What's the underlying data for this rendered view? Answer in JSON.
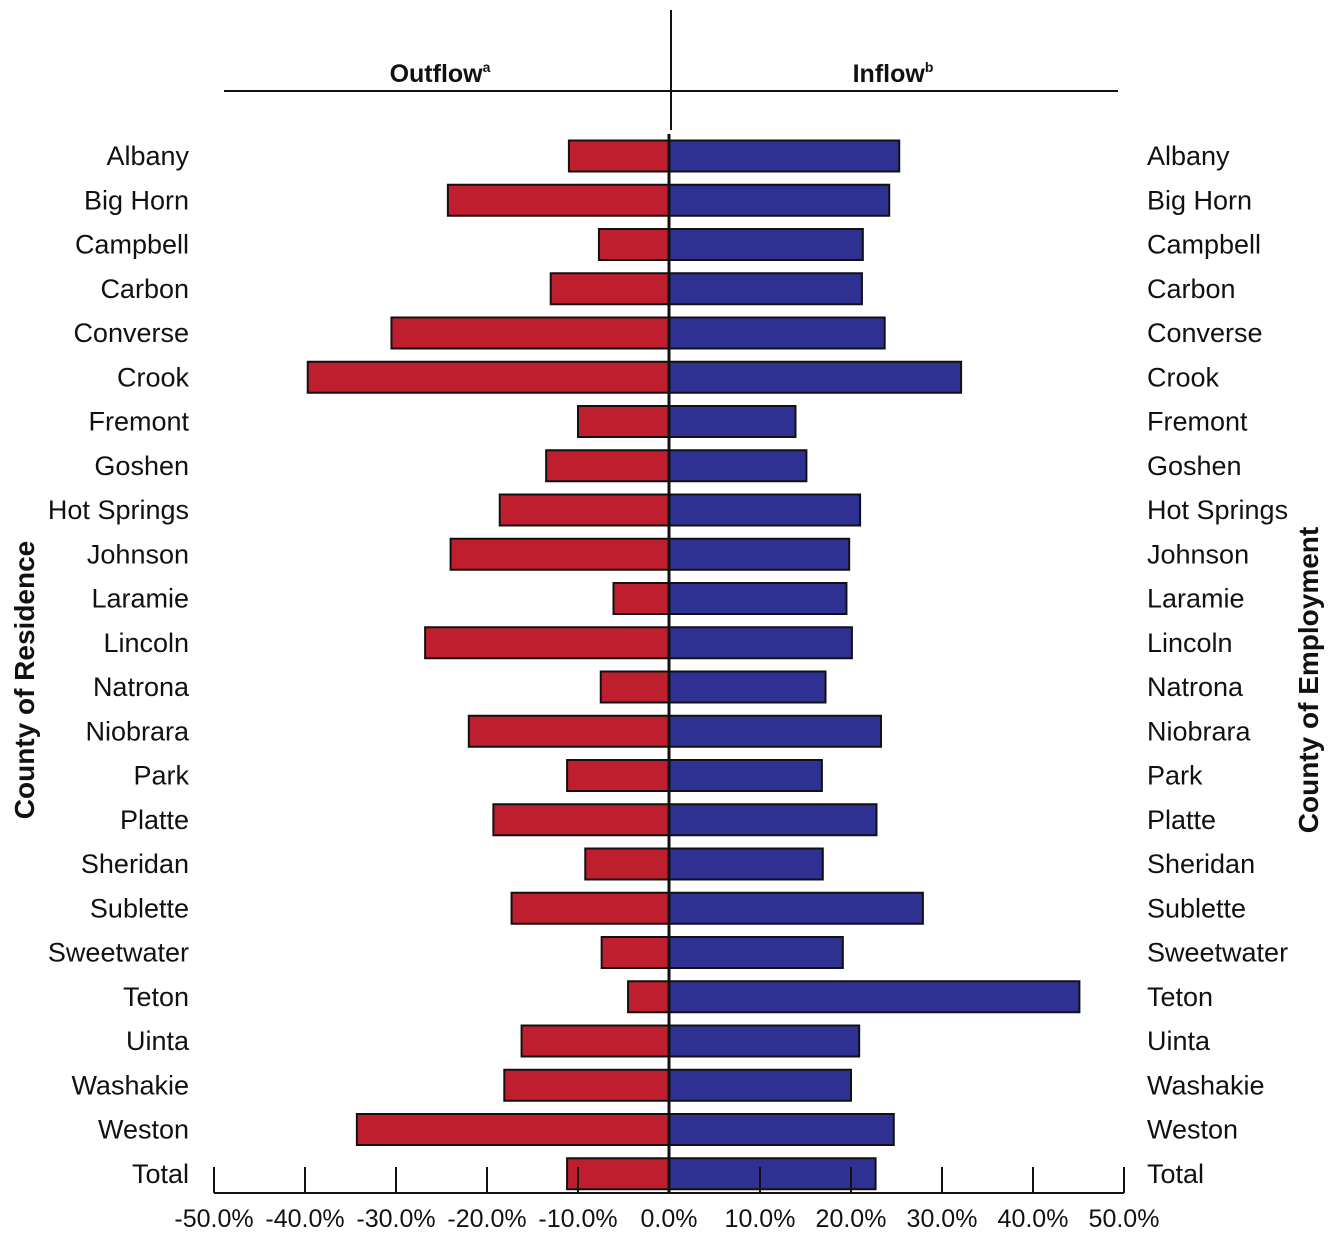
{
  "chart_data": {
    "type": "bar",
    "orientation": "horizontal-diverging",
    "header_left": {
      "text": "Outflow",
      "sup": "a"
    },
    "header_right": {
      "text": "Inflow",
      "sup": "b"
    },
    "left_axis_title": "County of Residence",
    "right_axis_title": "County of Employment",
    "categories": [
      "Albany",
      "Big Horn",
      "Campbell",
      "Carbon",
      "Converse",
      "Crook",
      "Fremont",
      "Goshen",
      "Hot Springs",
      "Johnson",
      "Laramie",
      "Lincoln",
      "Natrona",
      "Niobrara",
      "Park",
      "Platte",
      "Sheridan",
      "Sublette",
      "Sweetwater",
      "Teton",
      "Uinta",
      "Washakie",
      "Weston",
      "Total"
    ],
    "series": [
      {
        "name": "Outflow",
        "color": "#be1e2d",
        "values": [
          -11.0,
          -24.3,
          -7.7,
          -13.0,
          -30.5,
          -39.7,
          -10.0,
          -13.5,
          -18.6,
          -24.0,
          -6.1,
          -26.8,
          -7.5,
          -22.0,
          -11.2,
          -19.3,
          -9.2,
          -17.3,
          -7.4,
          -4.5,
          -16.2,
          -18.1,
          -34.3,
          -11.2
        ]
      },
      {
        "name": "Inflow",
        "color": "#2e3192",
        "values": [
          25.3,
          24.2,
          21.3,
          21.2,
          23.7,
          32.1,
          13.9,
          15.1,
          21.0,
          19.8,
          19.5,
          20.1,
          17.2,
          23.3,
          16.8,
          22.8,
          16.9,
          27.9,
          19.1,
          45.1,
          20.9,
          20.0,
          24.7,
          22.7
        ]
      }
    ],
    "x_ticks": [
      "-50.0%",
      "-40.0%",
      "-30.0%",
      "-20.0%",
      "-10.0%",
      "0.0%",
      "10.0%",
      "20.0%",
      "30.0%",
      "40.0%",
      "50.0%"
    ],
    "xlim": [
      -50,
      50
    ],
    "grid": false,
    "legend": "none"
  }
}
